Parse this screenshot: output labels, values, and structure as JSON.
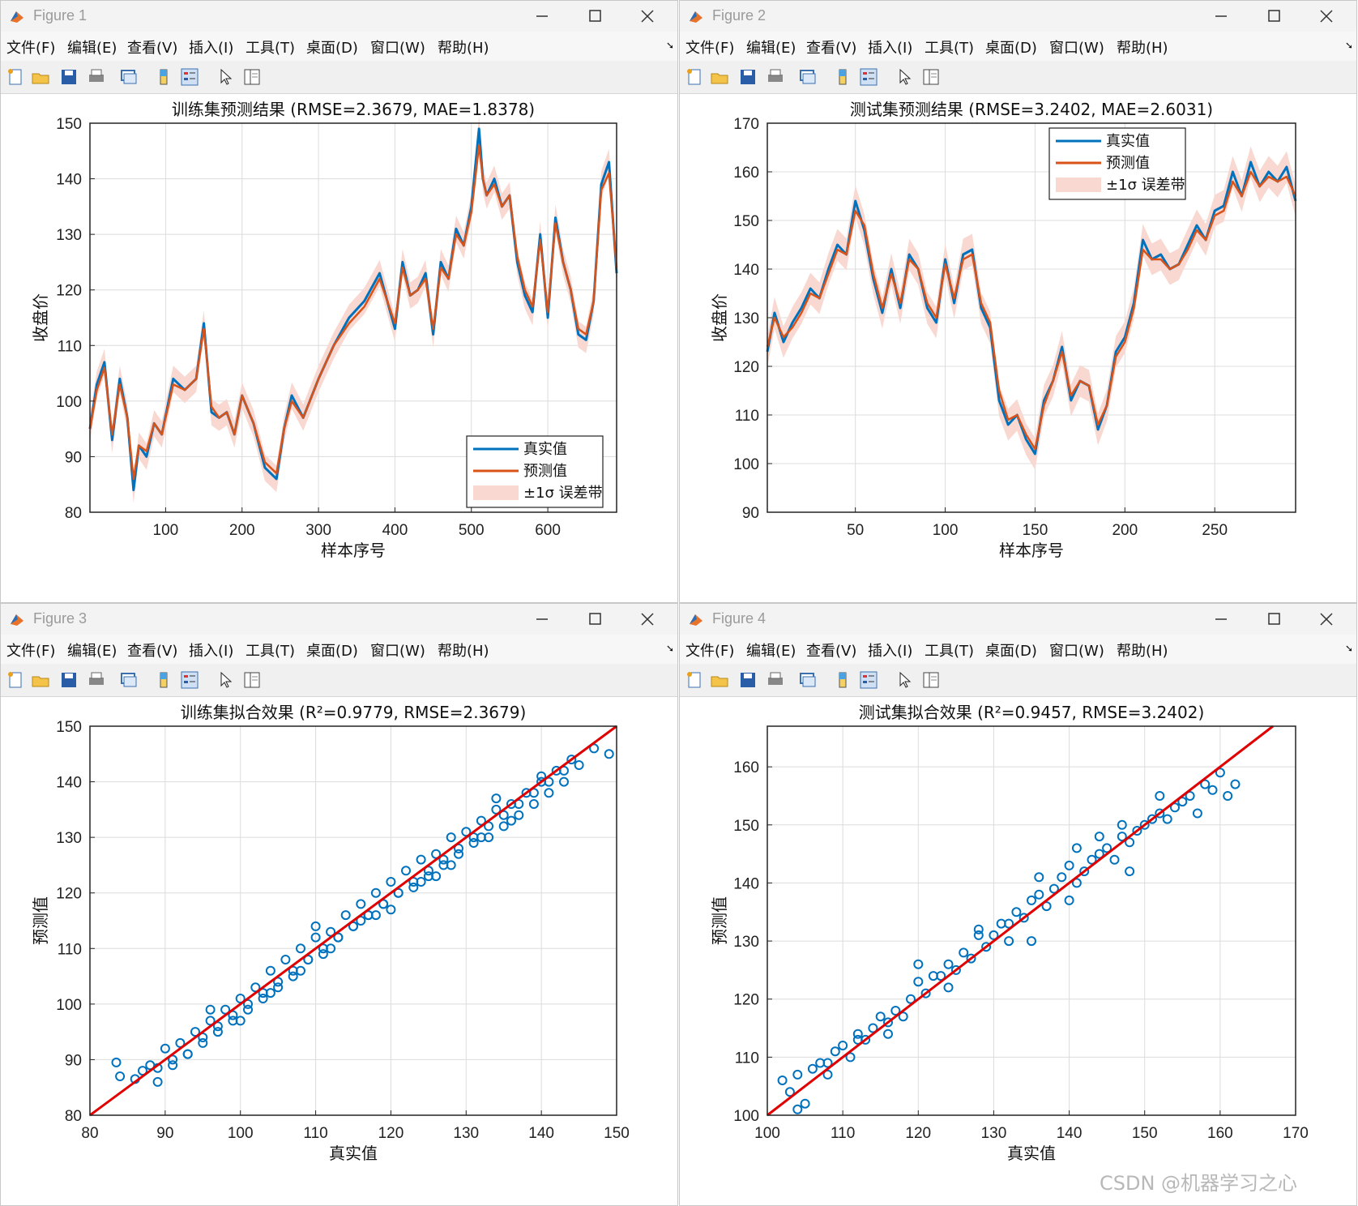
{
  "windows": [
    {
      "title": "Figure 1",
      "menu": [
        "文件(F)",
        "编辑(E)",
        "查看(V)",
        "插入(I)",
        "工具(T)",
        "桌面(D)",
        "窗口(W)",
        "帮助(H)"
      ],
      "plot": {
        "kind": "line",
        "title": "训练集预测结果 (RMSE=2.3679, MAE=1.8378)",
        "xlabel": "样本序号",
        "ylabel": "收盘价",
        "xlim": [
          1,
          690
        ],
        "ylim": [
          80,
          150
        ],
        "xticks": [
          100,
          200,
          300,
          400,
          500,
          600
        ],
        "yticks": [
          80,
          90,
          100,
          110,
          120,
          130,
          140,
          150
        ],
        "legend": [
          "真实值",
          "预测值",
          "±1σ 误差带"
        ],
        "legend_position": "bottom-right"
      }
    },
    {
      "title": "Figure 2",
      "menu": [
        "文件(F)",
        "编辑(E)",
        "查看(V)",
        "插入(I)",
        "工具(T)",
        "桌面(D)",
        "窗口(W)",
        "帮助(H)"
      ],
      "plot": {
        "kind": "line",
        "title": "测试集预测结果 (RMSE=3.2402, MAE=2.6031)",
        "xlabel": "样本序号",
        "ylabel": "收盘价",
        "xlim": [
          1,
          295
        ],
        "ylim": [
          90,
          170
        ],
        "xticks": [
          50,
          100,
          150,
          200,
          250
        ],
        "yticks": [
          90,
          100,
          110,
          120,
          130,
          140,
          150,
          160,
          170
        ],
        "legend": [
          "真实值",
          "预测值",
          "±1σ 误差带"
        ],
        "legend_position": "top-center"
      }
    },
    {
      "title": "Figure 3",
      "menu": [
        "文件(F)",
        "编辑(E)",
        "查看(V)",
        "插入(I)",
        "工具(T)",
        "桌面(D)",
        "窗口(W)",
        "帮助(H)"
      ],
      "plot": {
        "kind": "scatter",
        "title": "训练集拟合效果 (R²=0.9779, RMSE=2.3679)",
        "xlabel": "真实值",
        "ylabel": "预测值",
        "xlim": [
          80,
          150
        ],
        "ylim": [
          80,
          150
        ],
        "xticks": [
          80,
          90,
          100,
          110,
          120,
          130,
          140,
          150
        ],
        "yticks": [
          80,
          90,
          100,
          110,
          120,
          130,
          140,
          150
        ]
      }
    },
    {
      "title": "Figure 4",
      "menu": [
        "文件(F)",
        "编辑(E)",
        "查看(V)",
        "插入(I)",
        "工具(T)",
        "桌面(D)",
        "窗口(W)",
        "帮助(H)"
      ],
      "plot": {
        "kind": "scatter",
        "title": "测试集拟合效果 (R²=0.9457, RMSE=3.2402)",
        "xlabel": "真实值",
        "ylabel": "预测值",
        "xlim": [
          100,
          170
        ],
        "ylim": [
          100,
          167
        ],
        "xticks": [
          100,
          110,
          120,
          130,
          140,
          150,
          160,
          170
        ],
        "yticks": [
          100,
          110,
          120,
          130,
          140,
          150,
          160
        ]
      }
    }
  ],
  "chart_data": [
    {
      "type": "line",
      "title": "训练集预测结果 (RMSE=2.3679, MAE=1.8378)",
      "xlabel": "样本序号",
      "ylabel": "收盘价",
      "xlim": [
        1,
        690
      ],
      "ylim": [
        80,
        150
      ],
      "grid": true,
      "x": [
        1,
        10,
        20,
        30,
        40,
        50,
        58,
        65,
        75,
        85,
        95,
        110,
        125,
        140,
        150,
        160,
        170,
        180,
        190,
        200,
        215,
        230,
        245,
        255,
        265,
        280,
        300,
        320,
        340,
        360,
        380,
        400,
        410,
        420,
        430,
        440,
        450,
        460,
        470,
        480,
        490,
        500,
        510,
        515,
        520,
        530,
        540,
        550,
        560,
        570,
        580,
        590,
        600,
        610,
        620,
        630,
        640,
        650,
        660,
        670,
        680,
        690
      ],
      "series": [
        {
          "name": "真实值",
          "color": "#0072BD",
          "values": [
            95,
            103,
            107,
            93,
            104,
            97,
            84,
            92,
            90,
            96,
            94,
            104,
            102,
            104,
            114,
            98,
            97,
            98,
            94,
            101,
            96,
            88,
            86,
            95,
            101,
            97,
            104,
            110,
            115,
            118,
            123,
            113,
            125,
            119,
            120,
            123,
            112,
            125,
            122,
            131,
            128,
            135,
            149,
            140,
            137,
            140,
            135,
            137,
            125,
            119,
            116,
            130,
            115,
            133,
            125,
            120,
            112,
            111,
            118,
            139,
            143,
            123
          ]
        },
        {
          "name": "预测值",
          "color": "#D95319",
          "values": [
            95,
            102,
            106,
            94,
            103,
            97,
            86,
            92,
            91,
            96,
            94,
            103,
            102,
            104,
            113,
            99,
            97,
            98,
            94,
            101,
            96,
            89,
            87,
            95,
            100,
            97,
            104,
            110,
            114,
            117,
            122,
            114,
            124,
            119,
            120,
            122,
            113,
            124,
            122,
            130,
            128,
            134,
            146,
            140,
            137,
            139,
            135,
            137,
            126,
            120,
            117,
            129,
            116,
            132,
            125,
            120,
            113,
            112,
            118,
            138,
            141,
            124
          ]
        }
      ],
      "error_band": {
        "name": "±1σ 误差带",
        "sigma": 2.37,
        "color": "#F8D8D0"
      },
      "legend": [
        "真实值",
        "预测值",
        "±1σ 误差带"
      ],
      "legend_position": "bottom-right"
    },
    {
      "type": "line",
      "title": "测试集预测结果 (RMSE=3.2402, MAE=2.6031)",
      "xlabel": "样本序号",
      "ylabel": "收盘价",
      "xlim": [
        1,
        295
      ],
      "ylim": [
        90,
        170
      ],
      "grid": true,
      "x": [
        1,
        5,
        10,
        15,
        20,
        25,
        30,
        35,
        40,
        45,
        50,
        55,
        60,
        65,
        70,
        75,
        80,
        85,
        90,
        95,
        100,
        105,
        110,
        115,
        120,
        125,
        130,
        135,
        140,
        145,
        150,
        155,
        160,
        165,
        170,
        175,
        180,
        185,
        190,
        195,
        200,
        205,
        210,
        215,
        220,
        225,
        230,
        235,
        240,
        245,
        250,
        255,
        260,
        265,
        270,
        275,
        280,
        285,
        290,
        295
      ],
      "series": [
        {
          "name": "真实值",
          "color": "#0072BD",
          "values": [
            123,
            131,
            125,
            129,
            132,
            136,
            134,
            140,
            145,
            143,
            154,
            148,
            138,
            131,
            140,
            132,
            143,
            140,
            132,
            129,
            142,
            133,
            143,
            144,
            132,
            128,
            113,
            108,
            110,
            105,
            102,
            113,
            117,
            124,
            113,
            117,
            116,
            107,
            112,
            123,
            126,
            133,
            146,
            142,
            143,
            140,
            141,
            145,
            149,
            146,
            152,
            153,
            160,
            155,
            162,
            157,
            160,
            158,
            161,
            154
          ]
        },
        {
          "name": "预测值",
          "color": "#D95319",
          "values": [
            124,
            130,
            126,
            128,
            131,
            135,
            134,
            139,
            144,
            143,
            152,
            149,
            139,
            132,
            139,
            133,
            142,
            140,
            133,
            130,
            141,
            134,
            142,
            143,
            133,
            129,
            115,
            109,
            110,
            106,
            103,
            112,
            117,
            123,
            114,
            117,
            116,
            108,
            112,
            122,
            125,
            132,
            144,
            142,
            142,
            140,
            141,
            144,
            148,
            146,
            151,
            152,
            158,
            155,
            160,
            157,
            159,
            158,
            159,
            155
          ]
        }
      ],
      "error_band": {
        "name": "±1σ 误差带",
        "sigma": 3.24,
        "color": "#F8D8D0"
      },
      "legend": [
        "真实值",
        "预测值",
        "±1σ 误差带"
      ],
      "legend_position": "top-center"
    },
    {
      "type": "scatter",
      "title": "训练集拟合效果 (R²=0.9779, RMSE=2.3679)",
      "xlabel": "真实值",
      "ylabel": "预测值",
      "xlim": [
        80,
        150
      ],
      "ylim": [
        80,
        150
      ],
      "grid": true,
      "points_x": [
        83.5,
        84,
        86,
        87,
        88,
        89,
        90,
        91,
        92,
        93,
        94,
        95,
        96,
        97,
        98,
        99,
        100,
        101,
        102,
        103,
        104,
        105,
        106,
        107,
        108,
        109,
        110,
        111,
        112,
        113,
        114,
        115,
        116,
        117,
        118,
        119,
        120,
        121,
        122,
        123,
        124,
        125,
        126,
        127,
        128,
        129,
        130,
        131,
        132,
        133,
        134,
        135,
        136,
        137,
        138,
        139,
        140,
        141,
        142,
        143,
        144,
        145,
        147,
        149,
        89,
        91,
        93,
        95,
        97,
        99,
        101,
        103,
        105,
        107,
        109,
        111,
        113,
        115,
        117,
        119,
        121,
        123,
        125,
        127,
        129,
        131,
        133,
        135,
        137,
        139,
        141,
        143,
        96,
        100,
        104,
        108,
        112,
        116,
        120,
        124,
        128,
        132,
        136,
        140,
        110,
        118,
        126,
        134
      ],
      "points_y": [
        89.5,
        87,
        86.5,
        88,
        89,
        88.5,
        92,
        90,
        93,
        91,
        95,
        93,
        97,
        95,
        99,
        97,
        101,
        99,
        103,
        101,
        106,
        103,
        108,
        105,
        110,
        108,
        112,
        109,
        113,
        112,
        116,
        114,
        118,
        116,
        120,
        118,
        122,
        120,
        124,
        121,
        126,
        123,
        127,
        125,
        130,
        127,
        131,
        129,
        133,
        130,
        135,
        132,
        136,
        134,
        138,
        136,
        140,
        138,
        142,
        140,
        144,
        143,
        146,
        145,
        86,
        89,
        91,
        94,
        96,
        98,
        100,
        102,
        104,
        106,
        108,
        110,
        112,
        114,
        116,
        118,
        120,
        122,
        124,
        126,
        128,
        130,
        132,
        134,
        136,
        138,
        140,
        142,
        99,
        97,
        102,
        106,
        110,
        115,
        117,
        122,
        125,
        130,
        133,
        141,
        114,
        116,
        123,
        137
      ],
      "fit_line": {
        "from": [
          80,
          80
        ],
        "to": [
          150,
          150
        ],
        "color": "#E00000"
      },
      "marker_color": "#0072BD"
    },
    {
      "type": "scatter",
      "title": "测试集拟合效果 (R²=0.9457, RMSE=3.2402)",
      "xlabel": "真实值",
      "ylabel": "预测值",
      "xlim": [
        100,
        170
      ],
      "ylim": [
        100,
        167
      ],
      "grid": true,
      "points_x": [
        102,
        103,
        104,
        105,
        106,
        107,
        108,
        109,
        110,
        111,
        112,
        113,
        114,
        115,
        116,
        117,
        118,
        119,
        120,
        121,
        122,
        123,
        124,
        125,
        126,
        127,
        128,
        129,
        130,
        131,
        132,
        133,
        134,
        135,
        136,
        137,
        138,
        139,
        140,
        141,
        142,
        143,
        144,
        145,
        146,
        147,
        148,
        149,
        150,
        151,
        152,
        153,
        154,
        155,
        156,
        157,
        158,
        159,
        160,
        161,
        162,
        104,
        108,
        112,
        116,
        120,
        124,
        128,
        132,
        136,
        140,
        144,
        148,
        152,
        135,
        141,
        147
      ],
      "points_y": [
        106,
        104,
        107,
        102,
        108,
        109,
        107,
        111,
        112,
        110,
        114,
        113,
        115,
        117,
        116,
        118,
        117,
        120,
        123,
        121,
        124,
        124,
        126,
        125,
        128,
        127,
        131,
        129,
        131,
        133,
        133,
        135,
        134,
        137,
        138,
        136,
        139,
        141,
        143,
        140,
        142,
        144,
        145,
        146,
        144,
        148,
        147,
        149,
        150,
        151,
        152,
        151,
        153,
        154,
        155,
        152,
        157,
        156,
        159,
        155,
        157,
        101,
        109,
        113,
        114,
        126,
        122,
        132,
        130,
        141,
        137,
        148,
        142,
        155,
        130,
        146,
        150
      ],
      "fit_line": {
        "from": [
          100,
          100
        ],
        "to": [
          167,
          167
        ],
        "color": "#E00000"
      },
      "marker_color": "#0072BD"
    }
  ],
  "watermark": "CSDN @机器学习之心",
  "colors": {
    "true_line": "#0072BD",
    "pred_line": "#D95319",
    "band": "#F8D8D0",
    "fit": "#E00000",
    "grid": "#DCDCDC"
  }
}
